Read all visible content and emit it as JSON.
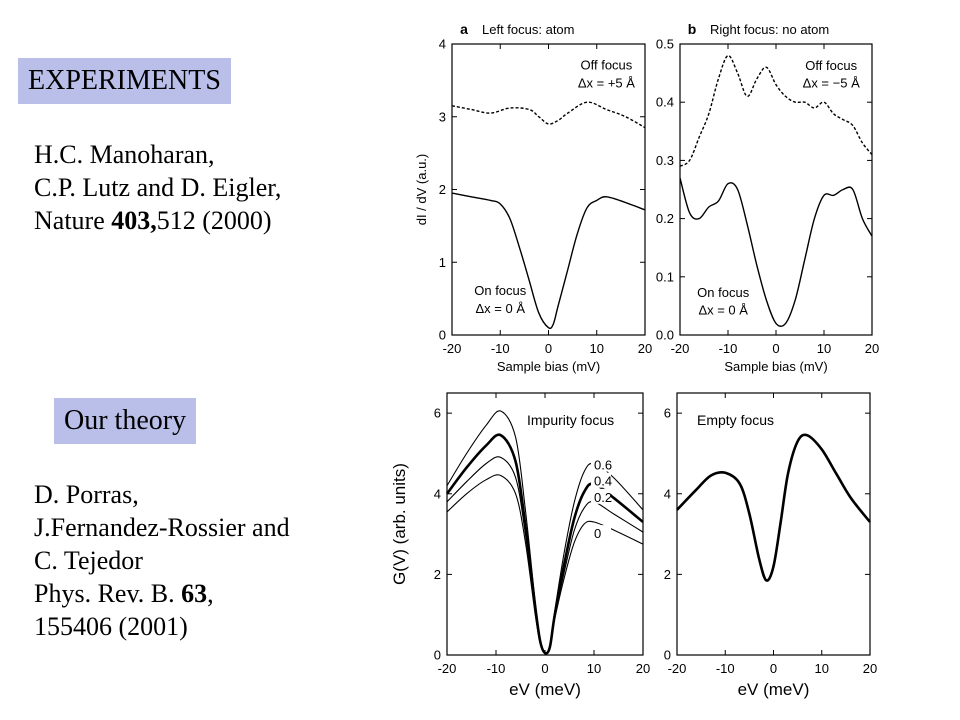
{
  "left": {
    "experiments_label": "EXPERIMENTS",
    "experiments_ref": {
      "line1": "H.C. Manoharan,",
      "line2": "C.P. Lutz and D. Eigler,",
      "line3_pre": "Nature ",
      "line3_bold": "403,",
      "line3_post": "512 (2000)"
    },
    "theory_label": "Our theory",
    "theory_ref": {
      "line1": "D. Porras,",
      "line2": "J.Fernandez-Rossier and",
      "line3": "C. Tejedor",
      "line4_pre": "Phys. Rev. B. ",
      "line4_bold": "63",
      "line4_post": ",",
      "line5": " 155406 (2001)"
    }
  },
  "chart_data": [
    {
      "id": "a",
      "type": "line",
      "panel_letter": "a",
      "title": "Left focus: atom",
      "xlabel": "Sample bias (mV)",
      "ylabel": "dI / dV (a.u.)",
      "xlim": [
        -20,
        20
      ],
      "ylim": [
        0,
        4
      ],
      "xticks": [
        -20,
        -10,
        0,
        10,
        20
      ],
      "yticks": [
        0,
        1,
        2,
        3,
        4
      ],
      "annotations": [
        {
          "text": "Off focus",
          "x": 12,
          "y": 3.65
        },
        {
          "text": "Δx = +5 Å",
          "x": 12,
          "y": 3.4
        },
        {
          "text": "On focus",
          "x": -10,
          "y": 0.55
        },
        {
          "text": "Δx = 0 Å",
          "x": -10,
          "y": 0.3
        }
      ],
      "series": [
        {
          "style": "dashed",
          "x": [
            -20,
            -16,
            -12,
            -8,
            -4,
            -2,
            0,
            2,
            4,
            8,
            12,
            16,
            20
          ],
          "y": [
            3.15,
            3.1,
            3.05,
            3.12,
            3.1,
            3.0,
            2.9,
            2.95,
            3.05,
            3.2,
            3.1,
            3.0,
            2.85
          ]
        },
        {
          "style": "solid",
          "x": [
            -20,
            -16,
            -12,
            -10,
            -8,
            -6,
            -4,
            -2,
            0,
            1,
            2,
            4,
            6,
            8,
            10,
            12,
            16,
            20
          ],
          "y": [
            1.95,
            1.9,
            1.85,
            1.8,
            1.6,
            1.2,
            0.75,
            0.3,
            0.1,
            0.15,
            0.4,
            0.9,
            1.4,
            1.75,
            1.85,
            1.9,
            1.82,
            1.72
          ]
        }
      ]
    },
    {
      "id": "b",
      "type": "line",
      "panel_letter": "b",
      "title": "Right focus: no atom",
      "xlabel": "Sample bias (mV)",
      "xlim": [
        -20,
        20
      ],
      "ylim": [
        0,
        0.5
      ],
      "xticks": [
        -20,
        -10,
        0,
        10,
        20
      ],
      "yticks": [
        0.0,
        0.1,
        0.2,
        0.3,
        0.4,
        0.5
      ],
      "annotations": [
        {
          "text": "Off focus",
          "x": 11.5,
          "y": 0.455
        },
        {
          "text": "Δx = −5 Å",
          "x": 11.5,
          "y": 0.425
        },
        {
          "text": "On focus",
          "x": -11,
          "y": 0.065
        },
        {
          "text": "Δx = 0 Å",
          "x": -11,
          "y": 0.035
        }
      ],
      "series": [
        {
          "style": "dashed",
          "x": [
            -20,
            -18,
            -16,
            -14,
            -12,
            -10,
            -8,
            -6,
            -4,
            -2,
            0,
            2,
            4,
            6,
            8,
            10,
            12,
            14,
            16,
            18,
            20
          ],
          "y": [
            0.29,
            0.3,
            0.34,
            0.38,
            0.44,
            0.48,
            0.45,
            0.41,
            0.44,
            0.46,
            0.43,
            0.41,
            0.4,
            0.4,
            0.39,
            0.4,
            0.38,
            0.37,
            0.36,
            0.33,
            0.31
          ]
        },
        {
          "style": "solid",
          "x": [
            -20,
            -18,
            -16,
            -14,
            -12,
            -10,
            -8,
            -6,
            -4,
            -2,
            0,
            2,
            4,
            6,
            8,
            10,
            12,
            14,
            16,
            18,
            20
          ],
          "y": [
            0.27,
            0.21,
            0.2,
            0.22,
            0.23,
            0.26,
            0.25,
            0.19,
            0.12,
            0.06,
            0.02,
            0.02,
            0.06,
            0.13,
            0.2,
            0.24,
            0.24,
            0.25,
            0.25,
            0.2,
            0.17
          ]
        }
      ]
    },
    {
      "id": "c",
      "type": "line",
      "title": "Impurity focus",
      "xlabel": "eV (meV)",
      "ylabel": "G(V) (arb. units)",
      "xlim": [
        -20,
        20
      ],
      "ylim": [
        0,
        6.5
      ],
      "xticks": [
        -20,
        -10,
        0,
        10,
        20
      ],
      "yticks": [
        0,
        2,
        4,
        6
      ],
      "series": [
        {
          "name": "0.6",
          "style": "thin",
          "x": [
            -20,
            -16,
            -12,
            -9,
            -6,
            -4,
            -2,
            -1,
            0,
            1,
            2,
            4,
            6,
            8,
            10,
            14,
            20
          ],
          "y": [
            4.2,
            5.0,
            5.7,
            6.05,
            5.4,
            3.6,
            1.3,
            0.4,
            0.05,
            0.2,
            1.1,
            2.6,
            3.8,
            4.55,
            4.75,
            4.4,
            3.6
          ]
        },
        {
          "name": "0.4",
          "style": "bold",
          "x": [
            -20,
            -16,
            -12,
            -9,
            -6,
            -4,
            -2,
            -1,
            0,
            1,
            2,
            4,
            6,
            8,
            10,
            14,
            20
          ],
          "y": [
            4.0,
            4.65,
            5.2,
            5.45,
            4.8,
            3.2,
            1.2,
            0.35,
            0.05,
            0.2,
            1.0,
            2.3,
            3.4,
            4.05,
            4.25,
            3.9,
            3.3
          ]
        },
        {
          "name": "0.2",
          "style": "thin",
          "x": [
            -20,
            -16,
            -12,
            -9,
            -6,
            -4,
            -2,
            -1,
            0,
            1,
            2,
            4,
            6,
            8,
            10,
            14,
            20
          ],
          "y": [
            3.8,
            4.3,
            4.75,
            4.9,
            4.4,
            3.0,
            1.1,
            0.3,
            0.05,
            0.2,
            0.95,
            2.1,
            3.1,
            3.65,
            3.8,
            3.5,
            3.05
          ]
        },
        {
          "name": "0",
          "style": "thin",
          "x": [
            -20,
            -16,
            -12,
            -9,
            -6,
            -4,
            -2,
            -1,
            0,
            1,
            2,
            4,
            6,
            8,
            10,
            14,
            20
          ],
          "y": [
            3.55,
            4.0,
            4.35,
            4.45,
            4.0,
            2.8,
            1.0,
            0.3,
            0.05,
            0.2,
            0.9,
            1.95,
            2.8,
            3.25,
            3.3,
            3.1,
            2.75
          ]
        }
      ],
      "series_label_positions": [
        {
          "name": "0.6",
          "x": 10,
          "y": 4.6
        },
        {
          "name": "0.4",
          "x": 10,
          "y": 4.2
        },
        {
          "name": "0.2",
          "x": 10,
          "y": 3.8
        },
        {
          "name": "0",
          "x": 10,
          "y": 2.9
        }
      ]
    },
    {
      "id": "d",
      "type": "line",
      "title": "Empty focus",
      "xlabel": "eV (meV)",
      "xlim": [
        -20,
        20
      ],
      "ylim": [
        0,
        6.5
      ],
      "xticks": [
        -20,
        -10,
        0,
        10,
        20
      ],
      "yticks": [
        0,
        2,
        4,
        6
      ],
      "series": [
        {
          "style": "bold",
          "x": [
            -20,
            -16,
            -13,
            -10,
            -7,
            -5,
            -3,
            -1.5,
            0,
            1.5,
            3,
            5,
            7,
            10,
            13,
            16,
            20
          ],
          "y": [
            3.6,
            4.1,
            4.45,
            4.52,
            4.25,
            3.5,
            2.4,
            1.85,
            2.2,
            3.3,
            4.5,
            5.3,
            5.45,
            5.1,
            4.5,
            3.9,
            3.3
          ]
        }
      ]
    }
  ]
}
